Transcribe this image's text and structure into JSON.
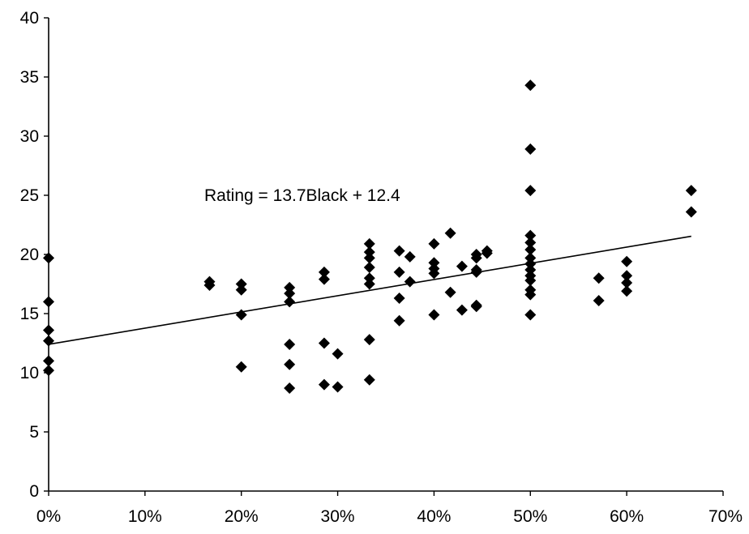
{
  "chart_data": {
    "type": "scatter",
    "title": "",
    "xlabel": "",
    "ylabel": "",
    "xlim": [
      0,
      0.7
    ],
    "ylim": [
      0,
      40
    ],
    "x_ticks": [
      0,
      0.1,
      0.2,
      0.3,
      0.4,
      0.5,
      0.6,
      0.7
    ],
    "x_tick_labels": [
      "0%",
      "10%",
      "20%",
      "30%",
      "40%",
      "50%",
      "60%",
      "70%"
    ],
    "y_ticks": [
      0,
      5,
      10,
      15,
      20,
      25,
      30,
      35,
      40
    ],
    "y_tick_labels": [
      "0",
      "5",
      "10",
      "15",
      "20",
      "25",
      "30",
      "35",
      "40"
    ],
    "grid": false,
    "legend": "none",
    "marker": "diamond",
    "marker_color": "#000000",
    "annotation": "Rating = 13.7Black + 12.4",
    "trendline": {
      "slope": 13.7,
      "intercept": 12.4,
      "x_range": [
        0,
        0.667
      ]
    },
    "points": [
      [
        0,
        19.7
      ],
      [
        0,
        16.0
      ],
      [
        0,
        13.6
      ],
      [
        0,
        12.7
      ],
      [
        0,
        11.0
      ],
      [
        0,
        10.2
      ],
      [
        0.167,
        17.7
      ],
      [
        0.167,
        17.4
      ],
      [
        0.2,
        17.5
      ],
      [
        0.2,
        17.0
      ],
      [
        0.2,
        14.9
      ],
      [
        0.2,
        10.5
      ],
      [
        0.25,
        17.2
      ],
      [
        0.25,
        16.7
      ],
      [
        0.25,
        16.0
      ],
      [
        0.25,
        12.4
      ],
      [
        0.25,
        10.7
      ],
      [
        0.25,
        8.7
      ],
      [
        0.286,
        18.5
      ],
      [
        0.286,
        17.9
      ],
      [
        0.286,
        12.5
      ],
      [
        0.286,
        9.0
      ],
      [
        0.3,
        11.6
      ],
      [
        0.3,
        8.8
      ],
      [
        0.333,
        20.9
      ],
      [
        0.333,
        20.2
      ],
      [
        0.333,
        19.7
      ],
      [
        0.333,
        18.9
      ],
      [
        0.333,
        18.0
      ],
      [
        0.333,
        17.5
      ],
      [
        0.333,
        12.8
      ],
      [
        0.333,
        9.4
      ],
      [
        0.364,
        20.3
      ],
      [
        0.364,
        18.5
      ],
      [
        0.364,
        16.3
      ],
      [
        0.364,
        14.4
      ],
      [
        0.375,
        19.8
      ],
      [
        0.375,
        17.7
      ],
      [
        0.4,
        20.9
      ],
      [
        0.4,
        19.3
      ],
      [
        0.4,
        18.8
      ],
      [
        0.4,
        18.4
      ],
      [
        0.4,
        14.9
      ],
      [
        0.417,
        21.8
      ],
      [
        0.417,
        16.8
      ],
      [
        0.429,
        19.0
      ],
      [
        0.429,
        15.3
      ],
      [
        0.444,
        20.0
      ],
      [
        0.444,
        19.7
      ],
      [
        0.444,
        18.7
      ],
      [
        0.444,
        18.5
      ],
      [
        0.444,
        15.7
      ],
      [
        0.444,
        15.6
      ],
      [
        0.455,
        20.3
      ],
      [
        0.455,
        20.1
      ],
      [
        0.5,
        34.3
      ],
      [
        0.5,
        28.9
      ],
      [
        0.5,
        25.4
      ],
      [
        0.5,
        21.6
      ],
      [
        0.5,
        21.0
      ],
      [
        0.5,
        20.4
      ],
      [
        0.5,
        19.7
      ],
      [
        0.5,
        19.2
      ],
      [
        0.5,
        18.7
      ],
      [
        0.5,
        18.2
      ],
      [
        0.5,
        17.8
      ],
      [
        0.5,
        17.0
      ],
      [
        0.5,
        16.6
      ],
      [
        0.5,
        14.9
      ],
      [
        0.571,
        18.0
      ],
      [
        0.571,
        16.1
      ],
      [
        0.6,
        19.4
      ],
      [
        0.6,
        18.2
      ],
      [
        0.6,
        17.6
      ],
      [
        0.6,
        16.9
      ],
      [
        0.667,
        25.4
      ],
      [
        0.667,
        23.6
      ]
    ]
  }
}
